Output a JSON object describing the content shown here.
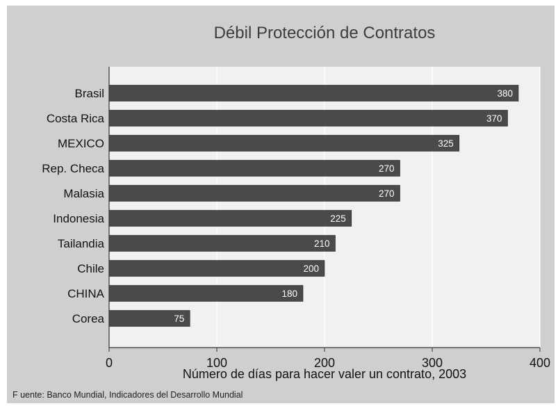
{
  "chart_data": {
    "type": "bar",
    "orientation": "horizontal",
    "title": "Débil Protección de Contratos",
    "xlabel": "Número de días para hacer valer un contrato, 2003",
    "ylabel": "",
    "categories": [
      "Brasil",
      "Costa Rica",
      "MEXICO",
      "Rep. Checa",
      "Malasia",
      "Indonesia",
      "Tailandia",
      "Chile",
      "CHINA",
      "Corea"
    ],
    "values": [
      380,
      370,
      325,
      270,
      270,
      225,
      210,
      200,
      180,
      75
    ],
    "xlim": [
      0,
      400
    ],
    "xticks": [
      "0",
      "100",
      "200",
      "300",
      "400"
    ],
    "data_labels": true,
    "grid": "vertical",
    "bar_color": "#4a4a4a"
  },
  "source": "F uente: Banco Mundial, Indicadores del Desarrollo Mundial"
}
